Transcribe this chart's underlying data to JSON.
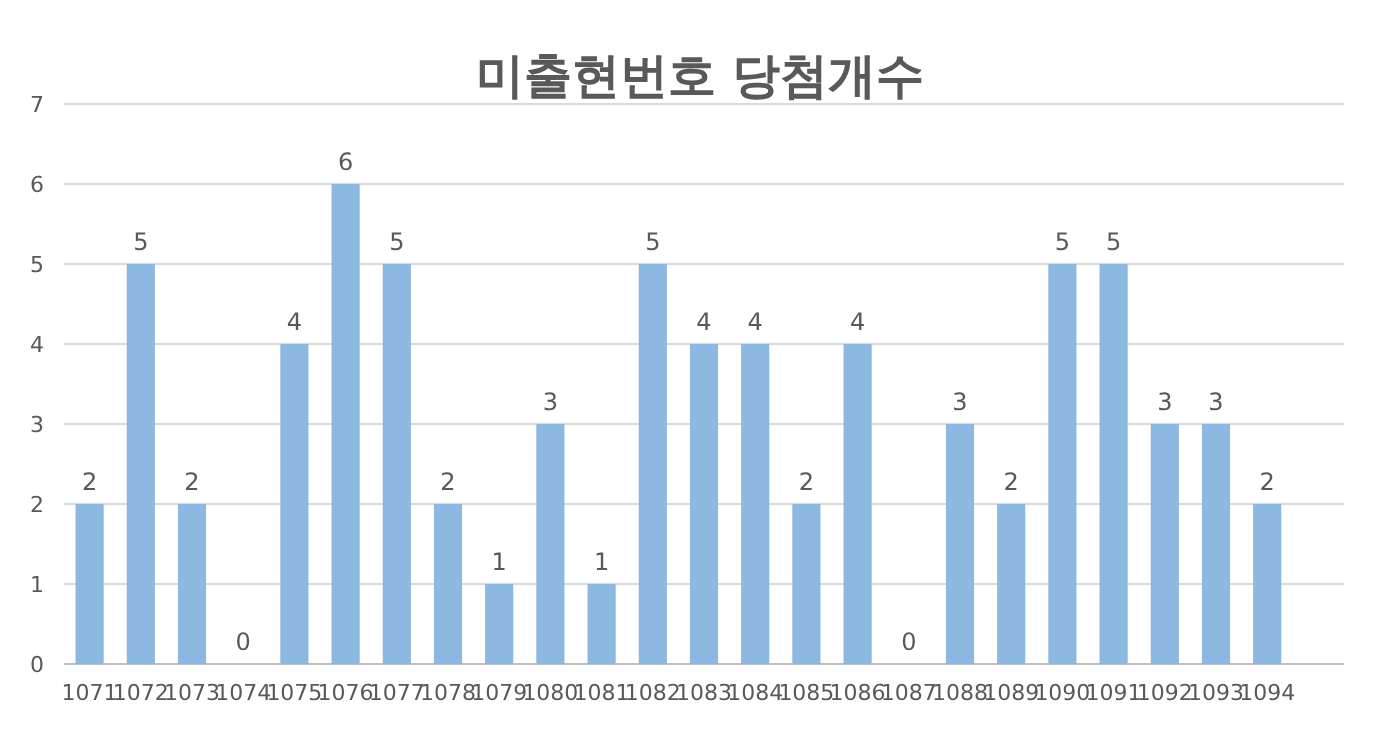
{
  "chart_data": {
    "type": "bar",
    "title": "미출현번호 당첨개수",
    "categories": [
      "1071",
      "1072",
      "1073",
      "1074",
      "1075",
      "1076",
      "1077",
      "1078",
      "1079",
      "1080",
      "1081",
      "1082",
      "1083",
      "1084",
      "1085",
      "1086",
      "1087",
      "1088",
      "1089",
      "1090",
      "1091",
      "1092",
      "1093",
      "1094"
    ],
    "values": [
      2,
      5,
      2,
      0,
      4,
      6,
      5,
      2,
      1,
      3,
      1,
      5,
      4,
      4,
      2,
      4,
      0,
      3,
      2,
      5,
      5,
      3,
      3,
      2
    ],
    "color": "#8cb8e2",
    "ylim": [
      0,
      7
    ],
    "yticks": [
      0,
      1,
      2,
      3,
      4,
      5,
      6,
      7
    ],
    "grid": "y",
    "data_labels": true
  }
}
